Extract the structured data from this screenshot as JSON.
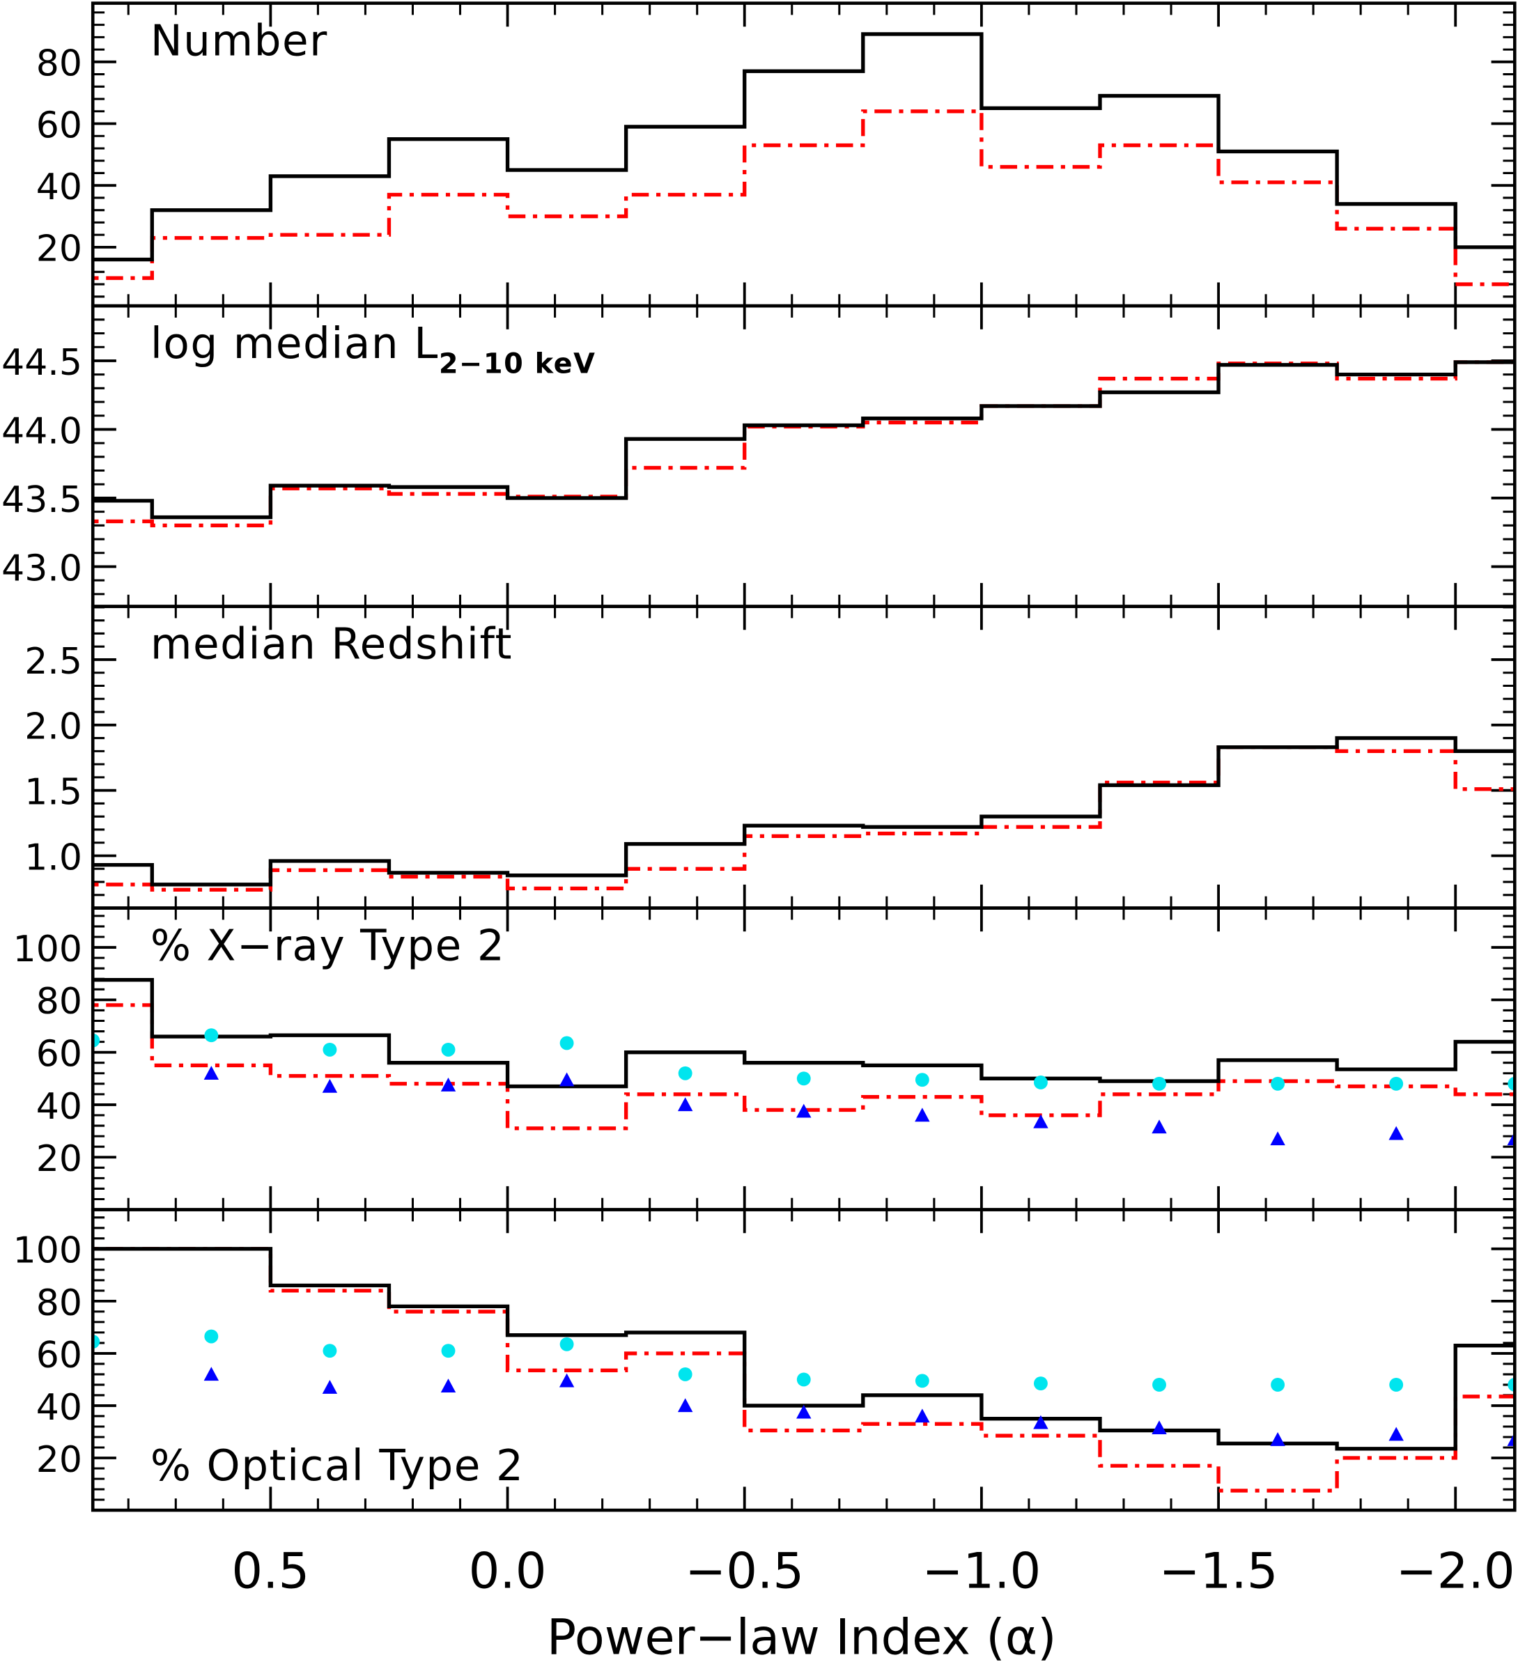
{
  "chart_data": {
    "type": "step-histogram",
    "xlabel": "Power−law Index (α)",
    "xlim": [
      0.875,
      -2.125
    ],
    "x_ticks": [
      0.5,
      0.0,
      -0.5,
      -1.0,
      -1.5,
      -2.0
    ],
    "x_tick_labels": [
      "0.5",
      "0.0",
      "−0.5",
      "−1.0",
      "−1.5",
      "−2.0"
    ],
    "bin_edges": [
      1.0,
      0.75,
      0.5,
      0.25,
      0.0,
      -0.25,
      -0.5,
      -0.75,
      -1.0,
      -1.25,
      -1.5,
      -1.75,
      -2.0,
      -2.25
    ],
    "colors": {
      "solid": "#000000",
      "dashdot": "#ff0000",
      "circles": "#00e5ee",
      "triangles": "#0000ff"
    },
    "panels": [
      {
        "label": "Number",
        "label_position": "top-left",
        "ylim": [
          1,
          99
        ],
        "y_ticks": [
          20,
          40,
          60,
          80
        ],
        "y_tick_labels": [
          "20",
          "40",
          "60",
          "80"
        ],
        "solid": [
          16,
          32,
          43,
          55,
          45,
          59,
          77,
          89,
          65,
          69,
          51,
          34,
          20
        ],
        "dashdot": [
          10,
          23,
          24,
          37,
          30,
          37,
          53,
          64,
          46,
          53,
          41,
          26,
          8
        ]
      },
      {
        "label": "log median L",
        "label_sub": "2−10 keV",
        "label_position": "top-left",
        "ylim": [
          42.71,
          44.9
        ],
        "y_ticks": [
          43.0,
          43.5,
          44.0,
          44.5
        ],
        "y_tick_labels": [
          "43.0",
          "43.5",
          "44.0",
          "44.5"
        ],
        "solid": [
          43.48,
          43.36,
          43.59,
          43.58,
          43.5,
          43.93,
          44.03,
          44.08,
          44.17,
          44.27,
          44.47,
          44.4,
          44.49
        ],
        "dashdot": [
          43.33,
          43.3,
          43.57,
          43.53,
          43.51,
          43.72,
          44.02,
          44.05,
          44.17,
          44.37,
          44.48,
          44.37,
          44.49
        ]
      },
      {
        "label": "median Redshift",
        "label_position": "top-left",
        "ylim": [
          0.6,
          2.907
        ],
        "y_ticks": [
          1.0,
          1.5,
          2.0,
          2.5
        ],
        "y_tick_labels": [
          "1.0",
          "1.5",
          "2.0",
          "2.5"
        ],
        "solid": [
          0.93,
          0.78,
          0.96,
          0.87,
          0.85,
          1.09,
          1.23,
          1.22,
          1.3,
          1.54,
          1.83,
          1.9,
          1.8
        ],
        "dashdot": [
          0.78,
          0.74,
          0.89,
          0.84,
          0.75,
          0.9,
          1.15,
          1.17,
          1.22,
          1.56,
          1.83,
          1.8,
          1.51
        ]
      },
      {
        "label": "% X−ray Type 2",
        "label_position": "top-left",
        "ylim": [
          0,
          115
        ],
        "y_ticks": [
          20,
          40,
          60,
          80,
          100
        ],
        "y_tick_labels": [
          "20",
          "40",
          "60",
          "80",
          "100"
        ],
        "solid": [
          87.6,
          66,
          66.5,
          56,
          47,
          60,
          56,
          55,
          50,
          49,
          57,
          53.5,
          64
        ],
        "dashdot": [
          78,
          55,
          51,
          48,
          31,
          44,
          38,
          43,
          36,
          44,
          49,
          47,
          44
        ],
        "circles_x": [
          0.875,
          0.625,
          0.375,
          0.125,
          -0.125,
          -0.375,
          -0.625,
          -0.875,
          -1.125,
          -1.375,
          -1.625,
          -1.875,
          -2.125
        ],
        "circles": [
          64.5,
          66.5,
          61,
          61,
          63.5,
          52,
          50,
          49.5,
          48.5,
          48,
          48,
          48,
          48
        ],
        "triangles_x": [
          0.625,
          0.375,
          0.125,
          -0.125,
          -0.375,
          -0.625,
          -0.875,
          -1.125,
          -1.375,
          -1.625,
          -1.875,
          -2.125
        ],
        "triangles": [
          52,
          47,
          47.5,
          49.5,
          40,
          37.5,
          36,
          33.5,
          31.5,
          27,
          29,
          27
        ]
      },
      {
        "label": "% Optical Type 2",
        "label_position": "bottom-left",
        "ylim": [
          0,
          115
        ],
        "y_ticks": [
          20,
          40,
          60,
          80,
          100
        ],
        "y_tick_labels": [
          "20",
          "40",
          "60",
          "80",
          "100"
        ],
        "solid": [
          100,
          100,
          86,
          78,
          67,
          68,
          40,
          44,
          35,
          30.5,
          25.5,
          23.5,
          63
        ],
        "dashdot": [
          100,
          100,
          84,
          76,
          53.5,
          60,
          30.5,
          33,
          28.5,
          17,
          7.5,
          20,
          43.5
        ],
        "circles_x": [
          0.875,
          0.625,
          0.375,
          0.125,
          -0.125,
          -0.375,
          -0.625,
          -0.875,
          -1.125,
          -1.375,
          -1.625,
          -1.875,
          -2.125
        ],
        "circles": [
          64.5,
          66.5,
          61,
          61,
          63.5,
          52,
          50,
          49.5,
          48.5,
          48,
          48,
          48,
          48
        ],
        "triangles_x": [
          0.625,
          0.375,
          0.125,
          -0.125,
          -0.375,
          -0.625,
          -0.875,
          -1.125,
          -1.375,
          -1.625,
          -1.875,
          -2.125
        ],
        "triangles": [
          52,
          47,
          47.5,
          49.5,
          40,
          37.5,
          36,
          33.5,
          31.5,
          27,
          29,
          27
        ]
      }
    ]
  }
}
